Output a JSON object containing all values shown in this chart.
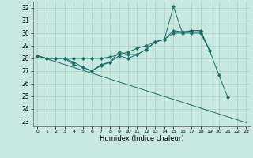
{
  "xlabel": "Humidex (Indice chaleur)",
  "bg_color": "#c8e8e0",
  "grid_color": "#aacccc",
  "line_color": "#1a6e6a",
  "xlim": [
    -0.5,
    23.5
  ],
  "ylim": [
    22.6,
    32.5
  ],
  "xticks": [
    0,
    1,
    2,
    3,
    4,
    5,
    6,
    7,
    8,
    9,
    10,
    11,
    12,
    13,
    14,
    15,
    16,
    17,
    18,
    19,
    20,
    21,
    22,
    23
  ],
  "yticks": [
    23,
    24,
    25,
    26,
    27,
    28,
    29,
    30,
    31,
    32
  ],
  "series": [
    {
      "x": [
        0,
        1,
        2,
        3,
        4,
        5,
        6,
        7,
        8,
        9,
        10,
        11,
        12,
        13,
        14,
        15,
        16,
        17,
        18,
        19,
        20,
        21
      ],
      "y": [
        28.2,
        28.0,
        28.0,
        28.0,
        27.5,
        27.3,
        27.0,
        27.5,
        27.7,
        28.5,
        28.3,
        28.3,
        28.7,
        29.3,
        29.5,
        32.1,
        30.0,
        30.0,
        30.0,
        28.6,
        26.7,
        24.9
      ],
      "has_marker": true
    },
    {
      "x": [
        0,
        1,
        2,
        3,
        4,
        5,
        6,
        7,
        8,
        9,
        10,
        11,
        12,
        13,
        14,
        15,
        16,
        17,
        18,
        19
      ],
      "y": [
        28.2,
        28.0,
        28.0,
        28.0,
        27.7,
        27.3,
        27.0,
        27.4,
        27.7,
        28.2,
        28.0,
        28.3,
        28.7,
        29.3,
        29.5,
        30.2,
        30.1,
        30.2,
        30.2,
        28.6
      ],
      "has_marker": true
    },
    {
      "x": [
        0,
        1,
        2,
        3,
        4,
        5,
        6,
        7,
        8,
        9,
        10,
        11,
        12,
        13,
        14,
        15,
        16,
        17,
        18,
        19
      ],
      "y": [
        28.2,
        28.0,
        28.0,
        28.0,
        28.0,
        28.0,
        28.0,
        28.0,
        28.1,
        28.3,
        28.5,
        28.8,
        29.0,
        29.3,
        29.5,
        30.0,
        30.0,
        30.2,
        30.2,
        28.6
      ],
      "has_marker": true
    },
    {
      "x": [
        0,
        23
      ],
      "y": [
        28.2,
        22.9
      ],
      "has_marker": false
    }
  ]
}
